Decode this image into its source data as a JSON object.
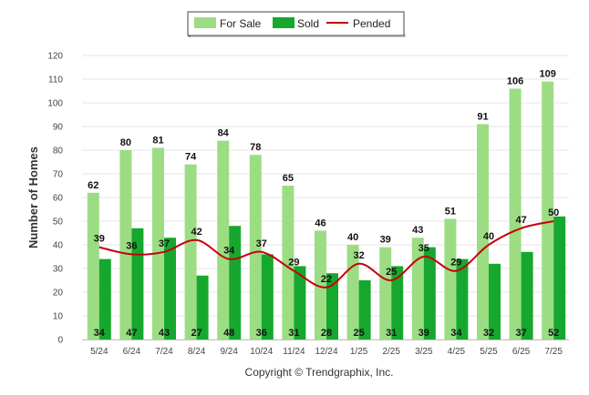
{
  "copyright": "Copyright © Trendgraphix, Inc.",
  "colors": {
    "for_sale": "#9cdd84",
    "sold": "#16a82e",
    "pended": "#c4000a",
    "grid": "#e6e6e6"
  },
  "chart_data": {
    "type": "bar",
    "title": "",
    "xlabel": "",
    "ylabel": "Number of Homes",
    "ylim": [
      0,
      120
    ],
    "yticks": [
      0,
      10,
      20,
      30,
      40,
      50,
      60,
      70,
      80,
      90,
      100,
      110,
      120
    ],
    "grid": true,
    "legend_placement": "top-center",
    "categories": [
      "5/24",
      "6/24",
      "7/24",
      "8/24",
      "9/24",
      "10/24",
      "11/24",
      "12/24",
      "1/25",
      "2/25",
      "3/25",
      "4/25",
      "5/25",
      "6/25",
      "7/25"
    ],
    "series": [
      {
        "name": "For Sale",
        "type": "bar",
        "values": [
          62,
          80,
          81,
          74,
          84,
          78,
          65,
          46,
          40,
          39,
          43,
          51,
          91,
          106,
          109
        ]
      },
      {
        "name": "Sold",
        "type": "bar",
        "values": [
          34,
          47,
          43,
          27,
          48,
          36,
          31,
          28,
          25,
          31,
          39,
          34,
          32,
          37,
          52
        ]
      },
      {
        "name": "Pended",
        "type": "line",
        "values": [
          39,
          36,
          37,
          42,
          34,
          37,
          29,
          22,
          32,
          25,
          35,
          29,
          40,
          47,
          50
        ]
      }
    ]
  }
}
